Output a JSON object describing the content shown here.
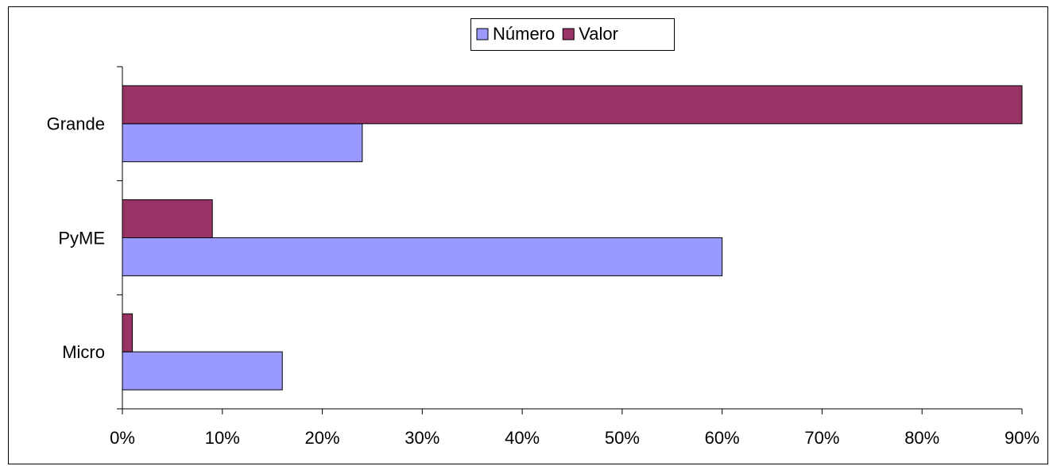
{
  "chart_data": {
    "type": "hbar",
    "categories": [
      "Grande",
      "PyME",
      "Micro"
    ],
    "series": [
      {
        "name": "Número",
        "color": "#9999ff",
        "values": [
          24,
          60,
          16
        ]
      },
      {
        "name": "Valor",
        "color": "#993366",
        "values": [
          90,
          9,
          1
        ]
      }
    ],
    "xlim": [
      0,
      90
    ],
    "xticks": [
      {
        "value": 0,
        "label": "0%"
      },
      {
        "value": 10,
        "label": "10%"
      },
      {
        "value": 20,
        "label": "20%"
      },
      {
        "value": 30,
        "label": "30%"
      },
      {
        "value": 40,
        "label": "40%"
      },
      {
        "value": 50,
        "label": "50%"
      },
      {
        "value": 60,
        "label": "60%"
      },
      {
        "value": 70,
        "label": "70%"
      },
      {
        "value": 80,
        "label": "80%"
      },
      {
        "value": 90,
        "label": "90%"
      }
    ],
    "legend": "top"
  }
}
